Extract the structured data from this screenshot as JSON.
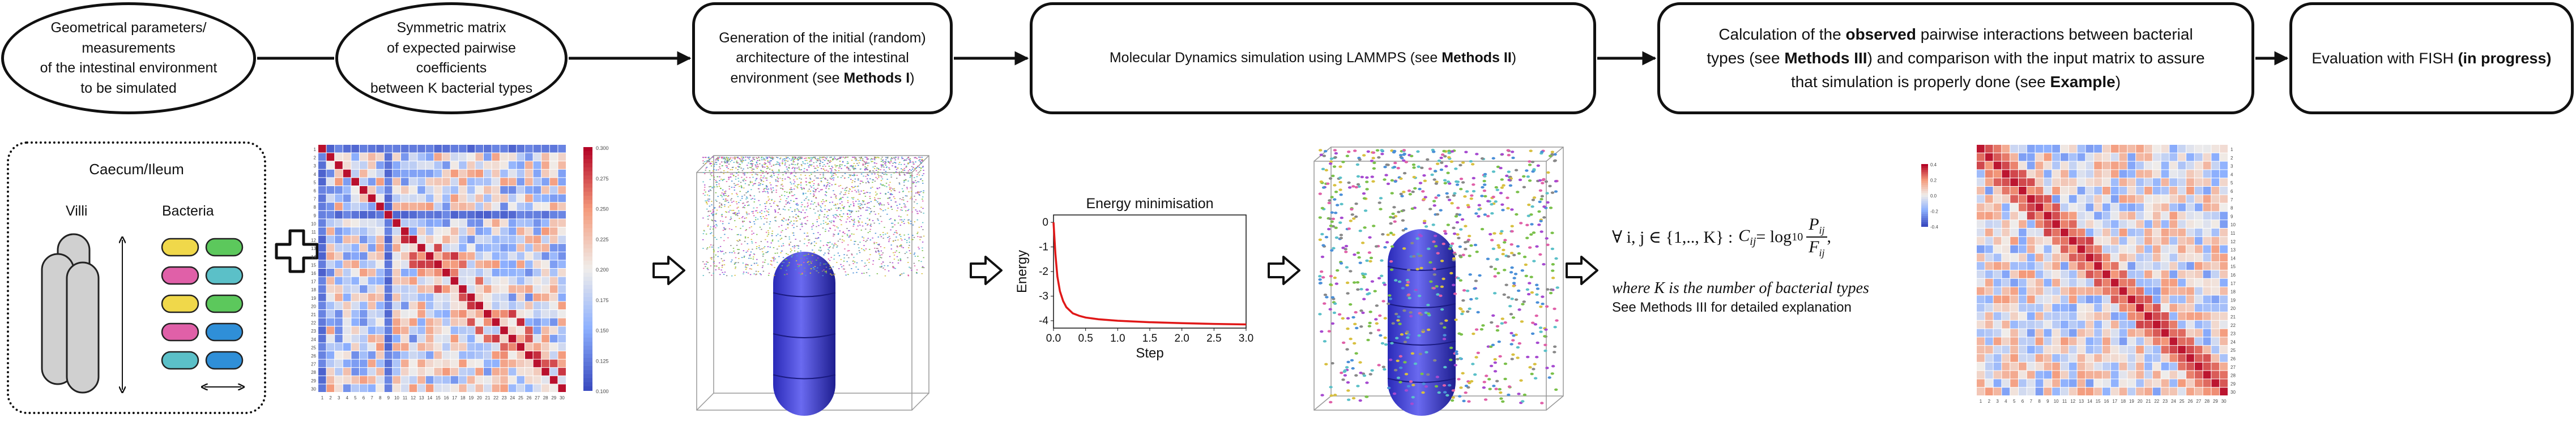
{
  "process": {
    "step1": {
      "lines": [
        "Geometrical parameters/",
        "measurements",
        "of the intestinal environment",
        "to be simulated"
      ]
    },
    "step2": {
      "lines": [
        "Symmetric matrix",
        "of expected pairwise coefficients",
        "between K bacterial types"
      ]
    },
    "step3": {
      "l1": "Generation of the initial (random)",
      "l2": "architecture of the intestinal",
      "l3a": "environment (see ",
      "l3b": "Methods I",
      "l3c": ")"
    },
    "step4": {
      "a": "Molecular Dynamics simulation using LAMMPS (see ",
      "b": "Methods II",
      "c": ")"
    },
    "step5": {
      "l1a": "Calculation of the ",
      "l1b": "observed",
      "l1c": " pairwise interactions between bacterial",
      "l2a": "types (see ",
      "l2b": "Methods III",
      "l2c": ") and comparison with the input matrix to assure",
      "l3a": "that simulation is properly done (see ",
      "l3b": "Example",
      "l3c": ")"
    },
    "step6": {
      "a": "Evaluation with FISH ",
      "b": "(in progress)"
    }
  },
  "schematic": {
    "title": "Caecum/Ileum",
    "villi_label": "Villi",
    "bacteria_label": "Bacteria"
  },
  "colors": {
    "pill_colors": [
      "#f0d84a",
      "#5cc85c",
      "#e060a8",
      "#5bc0c8",
      "#f0d84a",
      "#5cc85c",
      "#e060a8",
      "#2f8fd8",
      "#5bc0c8",
      "#2f8fd8"
    ]
  },
  "energy_chart": {
    "chart_data": {
      "type": "line",
      "title": "Energy minimisation",
      "xlabel": "Step",
      "ylabel": "Energy",
      "xlim": [
        0.0,
        3.0
      ],
      "ylim": [
        -4.3,
        0.3
      ],
      "xticks": [
        "0.0",
        "0.5",
        "1.0",
        "1.5",
        "2.0",
        "2.5",
        "3.0"
      ],
      "yticks": [
        "0",
        "-1",
        "-2",
        "-3",
        "-4"
      ],
      "series": [
        {
          "x": [
            0.0,
            0.03,
            0.06,
            0.1,
            0.15,
            0.2,
            0.3,
            0.4,
            0.5,
            0.7,
            1.0,
            1.5,
            2.0,
            2.5,
            3.0
          ],
          "y": [
            0.0,
            -1.3,
            -2.2,
            -2.8,
            -3.2,
            -3.45,
            -3.7,
            -3.8,
            -3.87,
            -3.94,
            -4.0,
            -4.06,
            -4.1,
            -4.13,
            -4.15
          ]
        }
      ]
    }
  },
  "formula": {
    "forall": "∀ i, j ∈ {1,.., K} :",
    "lhs": "C",
    "lhs_sub": "ij",
    "eq": " = log",
    "log_sub": "10",
    "num": "P",
    "num_sub": "ij",
    "den": "F",
    "den_sub": "ij",
    "trail": ",",
    "where": "where K is the number of bacterial types",
    "note": "See Methods III for detailed explanation"
  },
  "heatmap1": {
    "colorbar_ticks": [
      "0.300",
      "0.275",
      "0.250",
      "0.225",
      "0.200",
      "0.175",
      "0.150",
      "0.125",
      "0.100"
    ]
  },
  "heatmap2": {
    "colorbar_ticks": [
      "0.4",
      "0.2",
      "0.0",
      "-0.2",
      "-0.4"
    ]
  }
}
